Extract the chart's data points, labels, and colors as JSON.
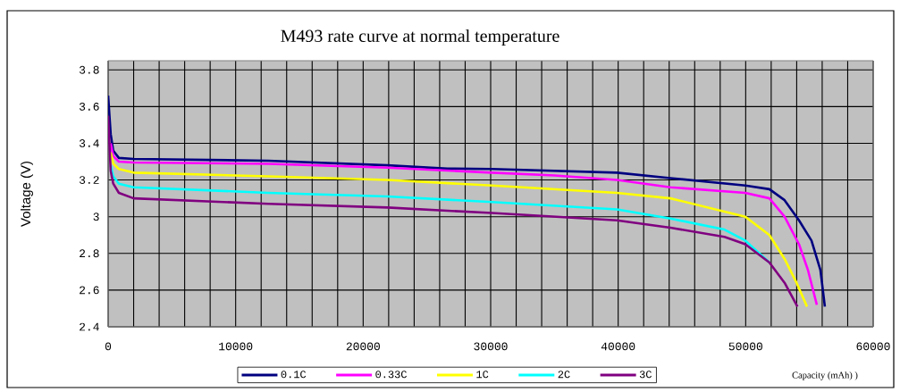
{
  "chart_data": {
    "type": "line",
    "title": "M493 rate curve at normal temperature",
    "xlabel": "Capacity (mAh)   )",
    "ylabel": "Voltage (V)",
    "xlim": [
      0,
      60000
    ],
    "ylim": [
      2.4,
      3.85
    ],
    "xticks": [
      0,
      {
        "value": 2000,
        "label": null
      },
      {
        "value": 4000,
        "label": null
      },
      {
        "value": 6000,
        "label": null
      },
      {
        "value": 8000,
        "label": null
      },
      10000,
      {
        "value": 12000,
        "label": null
      },
      {
        "value": 14000,
        "label": null
      },
      {
        "value": 16000,
        "label": null
      },
      {
        "value": 18000,
        "label": null
      },
      20000,
      {
        "value": 22000,
        "label": null
      },
      {
        "value": 24000,
        "label": null
      },
      {
        "value": 26000,
        "label": null
      },
      {
        "value": 28000,
        "label": null
      },
      30000,
      {
        "value": 32000,
        "label": null
      },
      {
        "value": 34000,
        "label": null
      },
      {
        "value": 36000,
        "label": null
      },
      {
        "value": 38000,
        "label": null
      },
      40000,
      {
        "value": 42000,
        "label": null
      },
      {
        "value": 44000,
        "label": null
      },
      {
        "value": 46000,
        "label": null
      },
      {
        "value": 48000,
        "label": null
      },
      50000,
      {
        "value": 52000,
        "label": null
      },
      {
        "value": 54000,
        "label": null
      },
      {
        "value": 56000,
        "label": null
      },
      {
        "value": 58000,
        "label": null
      },
      60000
    ],
    "yticks": [
      2.4,
      2.6,
      2.8,
      3,
      3.2,
      3.4,
      3.6,
      3.8
    ],
    "grid": true,
    "legend": "bottom",
    "series": [
      {
        "name": "0.1C",
        "color": "#000080",
        "x": [
          0,
          200,
          400,
          840,
          2000,
          12560,
          21900,
          26600,
          30100,
          39900,
          44100,
          49970,
          51860,
          53050,
          54180,
          55160,
          55860,
          56210
        ],
        "values": [
          3.66,
          3.45,
          3.36,
          3.32,
          3.315,
          3.305,
          3.28,
          3.262,
          3.26,
          3.24,
          3.21,
          3.17,
          3.15,
          3.09,
          2.98,
          2.87,
          2.71,
          2.51
        ]
      },
      {
        "name": "0.33C",
        "color": "#ff00ff",
        "x": [
          200,
          400,
          840,
          2000,
          12560,
          21900,
          30100,
          35000,
          39900,
          44100,
          49970,
          51860,
          53050,
          54180,
          54880,
          55580
        ],
        "values": [
          3.4,
          3.33,
          3.3,
          3.295,
          3.288,
          3.267,
          3.24,
          3.225,
          3.2,
          3.16,
          3.13,
          3.1,
          3.0,
          2.85,
          2.71,
          2.52
        ]
      },
      {
        "name": "1C",
        "color": "#ffff00",
        "x": [
          200,
          400,
          840,
          2000,
          12560,
          21900,
          30100,
          39900,
          44100,
          49970,
          51860,
          53050,
          53990,
          54810
        ],
        "values": [
          3.35,
          3.29,
          3.26,
          3.24,
          3.22,
          3.2,
          3.17,
          3.13,
          3.1,
          3.0,
          2.9,
          2.77,
          2.64,
          2.51
        ]
      },
      {
        "name": "2C",
        "color": "#00ffff",
        "x": [
          200,
          400,
          840,
          2000,
          12560,
          21900,
          30100,
          39900,
          44100,
          48330,
          49970,
          51860
        ],
        "values": [
          3.28,
          3.22,
          3.18,
          3.16,
          3.13,
          3.11,
          3.08,
          3.04,
          2.99,
          2.93,
          2.87,
          2.75
        ]
      },
      {
        "name": "3C",
        "color": "#800080",
        "x": [
          0,
          200,
          400,
          840,
          2000,
          12560,
          21900,
          30100,
          39900,
          44100,
          48330,
          49970,
          51860,
          53050,
          54060
        ],
        "values": [
          3.55,
          3.25,
          3.18,
          3.13,
          3.1,
          3.07,
          3.05,
          3.02,
          2.98,
          2.94,
          2.89,
          2.85,
          2.75,
          2.64,
          2.51
        ]
      }
    ]
  }
}
